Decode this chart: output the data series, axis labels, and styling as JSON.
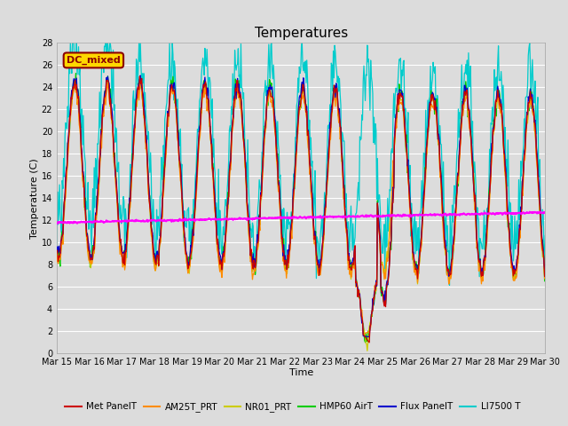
{
  "title": "Temperatures",
  "xlabel": "Time",
  "ylabel": "Temperature (C)",
  "ylim": [
    0,
    28
  ],
  "xlim": [
    0,
    15
  ],
  "x_tick_labels": [
    "Mar 15",
    "Mar 16",
    "Mar 17",
    "Mar 18",
    "Mar 19",
    "Mar 20",
    "Mar 21",
    "Mar 22",
    "Mar 23",
    "Mar 24",
    "Mar 25",
    "Mar 26",
    "Mar 27",
    "Mar 28",
    "Mar 29",
    "Mar 30"
  ],
  "annotation_text": "DC_mixed",
  "annotation_color": "#8B0000",
  "annotation_bg": "#FFD700",
  "series_colors": {
    "Met PanelT": "#CC0000",
    "AM25T_PRT": "#FF8C00",
    "NR01_PRT": "#CCCC00",
    "HMP60 AirT": "#00CC00",
    "Flux PanelT": "#0000CC",
    "LI7500 T": "#00CCCC",
    "Well Temp": "#FF00FF"
  },
  "well_temp_start": 11.8,
  "well_temp_end": 12.7,
  "bg_color": "#DCDCDC",
  "grid_color": "#FFFFFF"
}
